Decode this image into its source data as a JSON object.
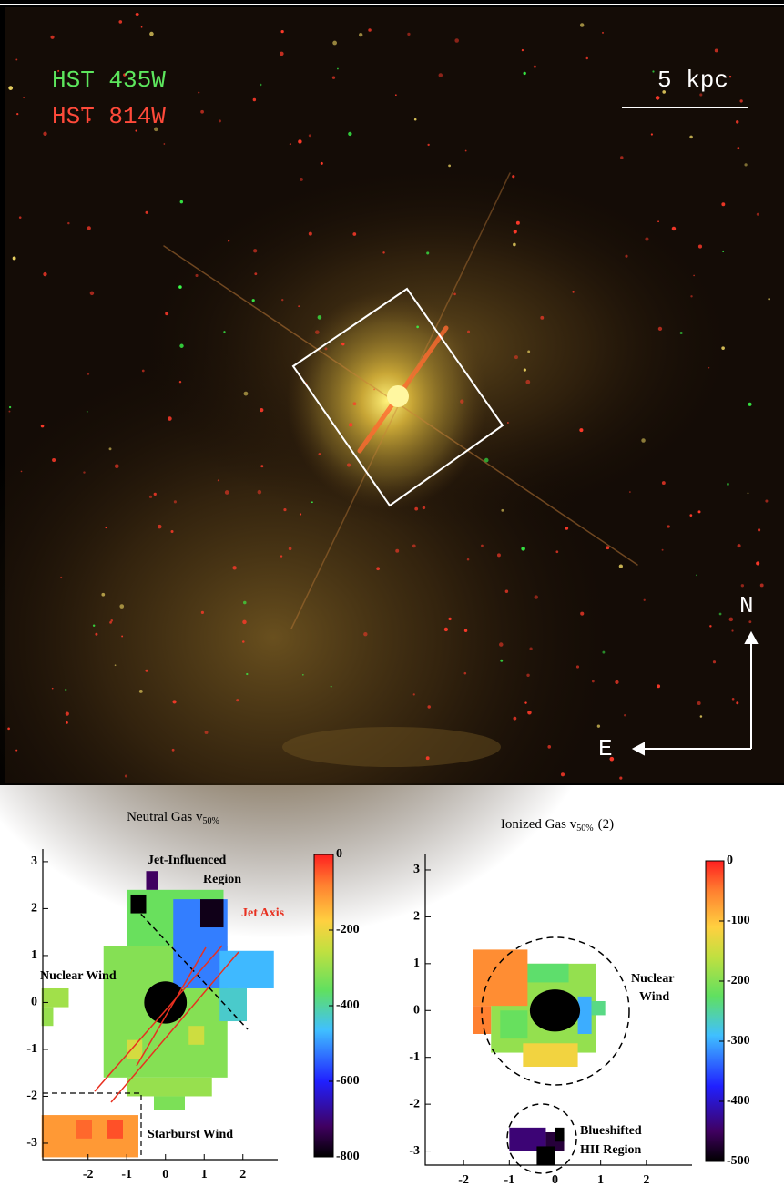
{
  "image": {
    "filters": [
      "HST 435W",
      "HST 814W"
    ],
    "scale_bar": "5 kpc",
    "north": "N",
    "east": "E"
  },
  "panels": [
    {
      "title": "Neutral Gas v",
      "title_sub": "50%",
      "xlim": [
        -3.17,
        2.9
      ],
      "ylim": [
        -3.35,
        3.27
      ],
      "xticks": [
        -2,
        -1,
        0,
        1,
        2
      ],
      "yticks": [
        -3,
        -2,
        -1,
        0,
        1,
        2,
        3
      ],
      "clim": [
        -800,
        0
      ],
      "cticks": [
        0,
        -200,
        -400,
        -600,
        -800
      ],
      "annotations": [
        "Jet-Influenced",
        "Region",
        "Jet Axis",
        "Nuclear Wind",
        "Starburst Wind"
      ],
      "regions": [
        {
          "x": [
            -1.6,
            1.6
          ],
          "y": [
            -1.6,
            1.2
          ],
          "value": -320
        },
        {
          "x": [
            -1.0,
            1.5
          ],
          "y": [
            1.2,
            2.4
          ],
          "value": -350
        },
        {
          "x": [
            0.2,
            1.6
          ],
          "y": [
            0.3,
            2.2
          ],
          "value": -520
        },
        {
          "x": [
            1.4,
            2.8
          ],
          "y": [
            0.3,
            1.1
          ],
          "value": -470
        },
        {
          "x": [
            1.4,
            2.1
          ],
          "y": [
            -0.4,
            0.3
          ],
          "value": -430
        },
        {
          "x": [
            0.9,
            1.5
          ],
          "y": [
            1.6,
            2.2
          ],
          "value": -780
        },
        {
          "x": [
            -0.5,
            -0.2
          ],
          "y": [
            2.4,
            2.8
          ],
          "value": -720
        },
        {
          "x": [
            -0.9,
            -0.5
          ],
          "y": [
            1.9,
            2.3
          ],
          "value": -800
        },
        {
          "x": [
            -1.0,
            1.2
          ],
          "y": [
            -2.0,
            -1.6
          ],
          "value": -300
        },
        {
          "x": [
            -0.3,
            0.5
          ],
          "y": [
            -2.3,
            -2.0
          ],
          "value": -330
        },
        {
          "x": [
            -3.2,
            -2.5
          ],
          "y": [
            -0.1,
            0.3
          ],
          "value": -290
        },
        {
          "x": [
            -3.2,
            -2.9
          ],
          "y": [
            -0.5,
            -0.1
          ],
          "value": -300
        },
        {
          "x": [
            -1.0,
            -0.6
          ],
          "y": [
            -1.2,
            -0.8
          ],
          "value": -230
        },
        {
          "x": [
            0.6,
            1.0
          ],
          "y": [
            -0.9,
            -0.5
          ],
          "value": -240
        },
        {
          "x": [
            -3.2,
            -0.7
          ],
          "y": [
            -3.3,
            -2.4
          ],
          "value": -110
        },
        {
          "x": [
            -1.5,
            -1.1
          ],
          "y": [
            -2.9,
            -2.5
          ],
          "value": -40
        },
        {
          "x": [
            -2.3,
            -1.9
          ],
          "y": [
            -2.9,
            -2.5
          ],
          "value": -60
        }
      ]
    },
    {
      "title": "Ionized Gas v",
      "title_sub": "50%",
      "title_suffix": "(2)",
      "xlim": [
        -2.84,
        3.0
      ],
      "ylim": [
        -3.3,
        3.33
      ],
      "xticks": [
        -2,
        -1,
        0,
        1,
        2
      ],
      "yticks": [
        -3,
        -2,
        -1,
        0,
        1,
        2,
        3
      ],
      "clim": [
        -500,
        0
      ],
      "cticks": [
        0,
        -100,
        -200,
        -300,
        -400,
        -500
      ],
      "annotations": [
        "Nuclear",
        "Wind",
        "Blueshifted",
        "HII Region"
      ],
      "regions": [
        {
          "x": [
            -1.4,
            0.9
          ],
          "y": [
            -0.9,
            1.0
          ],
          "value": -190
        },
        {
          "x": [
            -0.6,
            0.3
          ],
          "y": [
            0.6,
            1.0
          ],
          "value": -230
        },
        {
          "x": [
            -1.8,
            -0.6
          ],
          "y": [
            0.1,
            1.3
          ],
          "value": -60
        },
        {
          "x": [
            -1.8,
            -1.4
          ],
          "y": [
            -0.5,
            0.1
          ],
          "value": -50
        },
        {
          "x": [
            -1.2,
            -0.6
          ],
          "y": [
            -0.6,
            0.0
          ],
          "value": -220
        },
        {
          "x": [
            0.5,
            0.8
          ],
          "y": [
            -0.5,
            0.3
          ],
          "value": -300
        },
        {
          "x": [
            0.8,
            1.1
          ],
          "y": [
            -0.1,
            0.2
          ],
          "value": -240
        },
        {
          "x": [
            -0.7,
            0.5
          ],
          "y": [
            -1.2,
            -0.7
          ],
          "value": -120
        },
        {
          "x": [
            -1.0,
            -0.2
          ],
          "y": [
            -3.0,
            -2.5
          ],
          "value": -440
        },
        {
          "x": [
            -0.2,
            0.2
          ],
          "y": [
            -3.0,
            -2.6
          ],
          "value": -470
        },
        {
          "x": [
            -0.4,
            0.0
          ],
          "y": [
            -3.3,
            -2.9
          ],
          "value": -500
        },
        {
          "x": [
            0.0,
            0.2
          ],
          "y": [
            -2.8,
            -2.5
          ],
          "value": -500
        }
      ]
    }
  ]
}
